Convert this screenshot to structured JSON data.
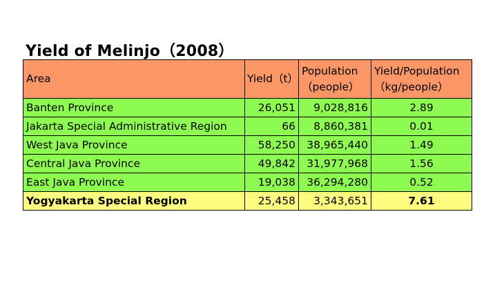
{
  "title": "Yield of Melinjo（2008）",
  "colors": {
    "header_bg": "#fb9667",
    "row_bg": "#8efb53",
    "highlight_bg": "#fdfc80",
    "border": "#000000"
  },
  "table": {
    "headers": {
      "area": "Area",
      "yield": "Yield（t）",
      "population_line1": "Population",
      "population_line2": "（people）",
      "ratio_line1": "Yield/Population",
      "ratio_line2": "（kg/people）"
    },
    "rows": [
      {
        "area": "Banten Province",
        "yield": "26,051",
        "population": "9,028,816",
        "ratio": "2.89"
      },
      {
        "area": "Jakarta Special Administrative Region",
        "yield": "66",
        "population": "8,860,381",
        "ratio": "0.01"
      },
      {
        "area": "West Java Province",
        "yield": "58,250",
        "population": "38,965,440",
        "ratio": "1.49"
      },
      {
        "area": "Central Java Province",
        "yield": "49,842",
        "population": "31,977,968",
        "ratio": "1.56"
      },
      {
        "area": "East Java Province",
        "yield": "19,038",
        "population": "36,294,280",
        "ratio": "0.52"
      },
      {
        "area": "Yogyakarta Special Region",
        "yield": "25,458",
        "population": "3,343,651",
        "ratio": "7.61"
      }
    ]
  }
}
